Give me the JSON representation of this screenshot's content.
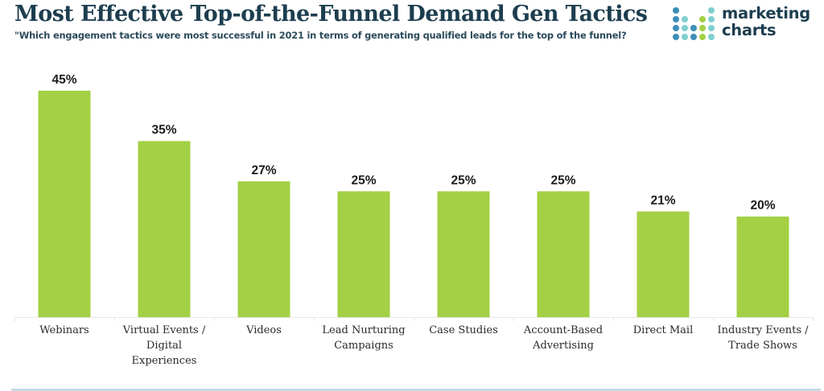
{
  "header": {
    "title": "Most Effective Top-of-the-Funnel Demand Gen Tactics",
    "subtitle": "\"Which engagement tactics were most successful in 2021 in terms of generating qualified leads for the top of the funnel?"
  },
  "logo": {
    "line1": "marketing",
    "line2": "charts",
    "icon": "dot-grid-logo-icon"
  },
  "colors": {
    "bar": "#a3d044",
    "title": "#1d3e4f",
    "axis": "#e6e6e6",
    "logo_dots": [
      "#3b8fb8",
      "#7fcfd0",
      "#a3d044",
      "#1d6f9a"
    ]
  },
  "chart_data": {
    "type": "bar",
    "title": "Most Effective Top-of-the-Funnel Demand Gen Tactics",
    "subtitle": "\"Which engagement tactics were most successful in 2021 in terms of generating qualified leads for the top of the funnel?",
    "xlabel": "",
    "ylabel": "",
    "categories": [
      [
        "Webinars"
      ],
      [
        "Virtual Events /",
        "Digital",
        "Experiences"
      ],
      [
        "Videos"
      ],
      [
        "Lead Nurturing",
        "Campaigns"
      ],
      [
        "Case Studies"
      ],
      [
        "Account-Based",
        "Advertising"
      ],
      [
        "Direct Mail"
      ],
      [
        "Industry Events /",
        "Trade Shows"
      ]
    ],
    "values": [
      45,
      35,
      27,
      25,
      25,
      25,
      21,
      20
    ],
    "value_labels": [
      "45%",
      "35%",
      "27%",
      "25%",
      "25%",
      "25%",
      "21%",
      "20%"
    ],
    "unit": "%",
    "ylim": [
      0,
      45
    ],
    "grid": false,
    "legend": "none"
  }
}
